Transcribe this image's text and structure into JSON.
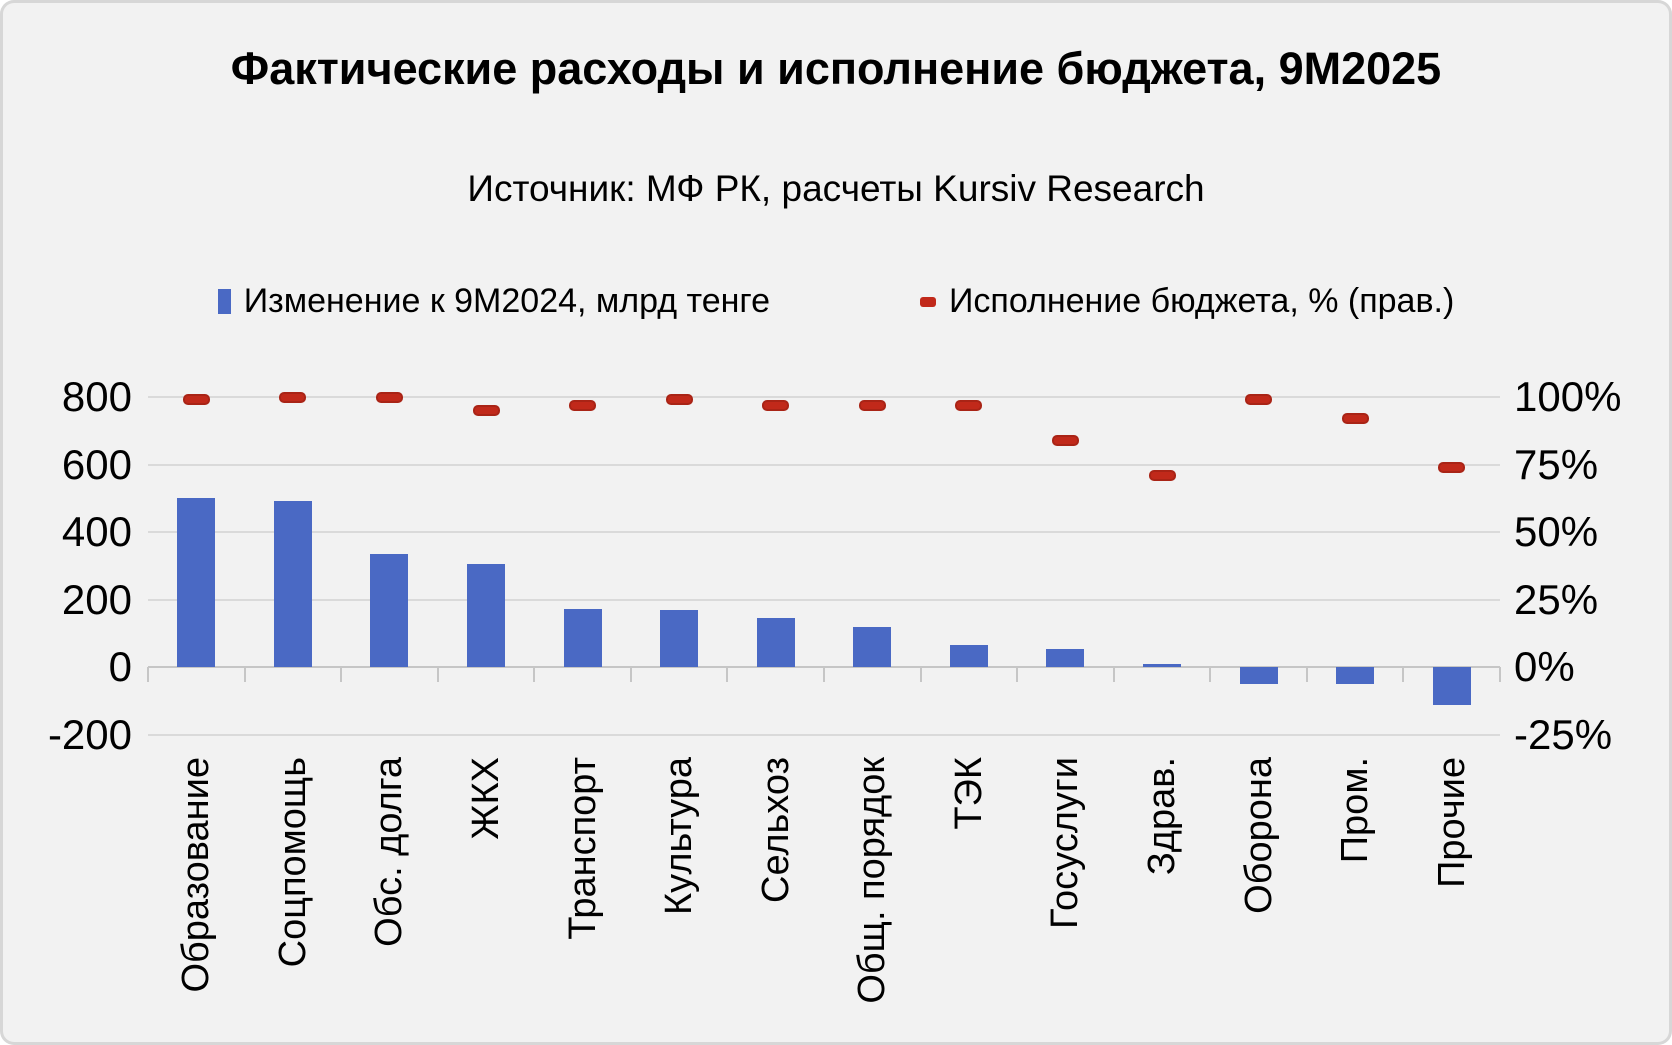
{
  "header": {
    "title": "Фактические расходы и исполнение бюджета, 9М2025",
    "subtitle": "Источник: МФ РК, расчеты Kursiv Research"
  },
  "legend": [
    {
      "label": "Изменение к 9М2024, млрд тенге",
      "marker": "bar",
      "color": "#4a69c4"
    },
    {
      "label": "Исполнение бюджета, % (прав.)",
      "marker": "dash",
      "color": "#c1291a"
    }
  ],
  "chart_data": {
    "type": "bar",
    "title": "Фактические расходы и исполнение бюджета, 9М2025",
    "subtitle": "Источник: МФ РК, расчеты Kursiv Research",
    "categories": [
      "Образование",
      "Соцпомощь",
      "Обс. долга",
      "ЖКХ",
      "Транспорт",
      "Культура",
      "Сельхоз",
      "Общ. порядок",
      "ТЭК",
      "Госуслуги",
      "Здрав.",
      "Оборона",
      "Пром.",
      "Прочие"
    ],
    "series": [
      {
        "name": "Изменение к 9М2024, млрд тенге",
        "type": "bar",
        "axis": "left",
        "unit": "млрд тенге",
        "color": "#4a69c4",
        "values": [
          500,
          493,
          334,
          305,
          173,
          168,
          144,
          119,
          64,
          52,
          8,
          -51,
          -49,
          -112
        ]
      },
      {
        "name": "Исполнение бюджета, % (прав.)",
        "type": "scatter-dash",
        "axis": "right",
        "unit": "%",
        "color": "#c1291a",
        "values": [
          99,
          100,
          100,
          95,
          97,
          99,
          97,
          97,
          97,
          84,
          71,
          99,
          92,
          74
        ]
      }
    ],
    "left_axis": {
      "tick_labels": [
        "800",
        "600",
        "400",
        "200",
        "0",
        "-200"
      ],
      "ticks": [
        800,
        600,
        400,
        200,
        0,
        -200
      ],
      "range": [
        -200,
        900
      ]
    },
    "right_axis": {
      "tick_labels": [
        "100%",
        "75%",
        "50%",
        "25%",
        "0%",
        "-25%"
      ],
      "ticks_pct": [
        100,
        75,
        50,
        25,
        0,
        -25
      ],
      "range": [
        -25,
        112.5
      ]
    },
    "grid": true,
    "legend_position": "top"
  }
}
